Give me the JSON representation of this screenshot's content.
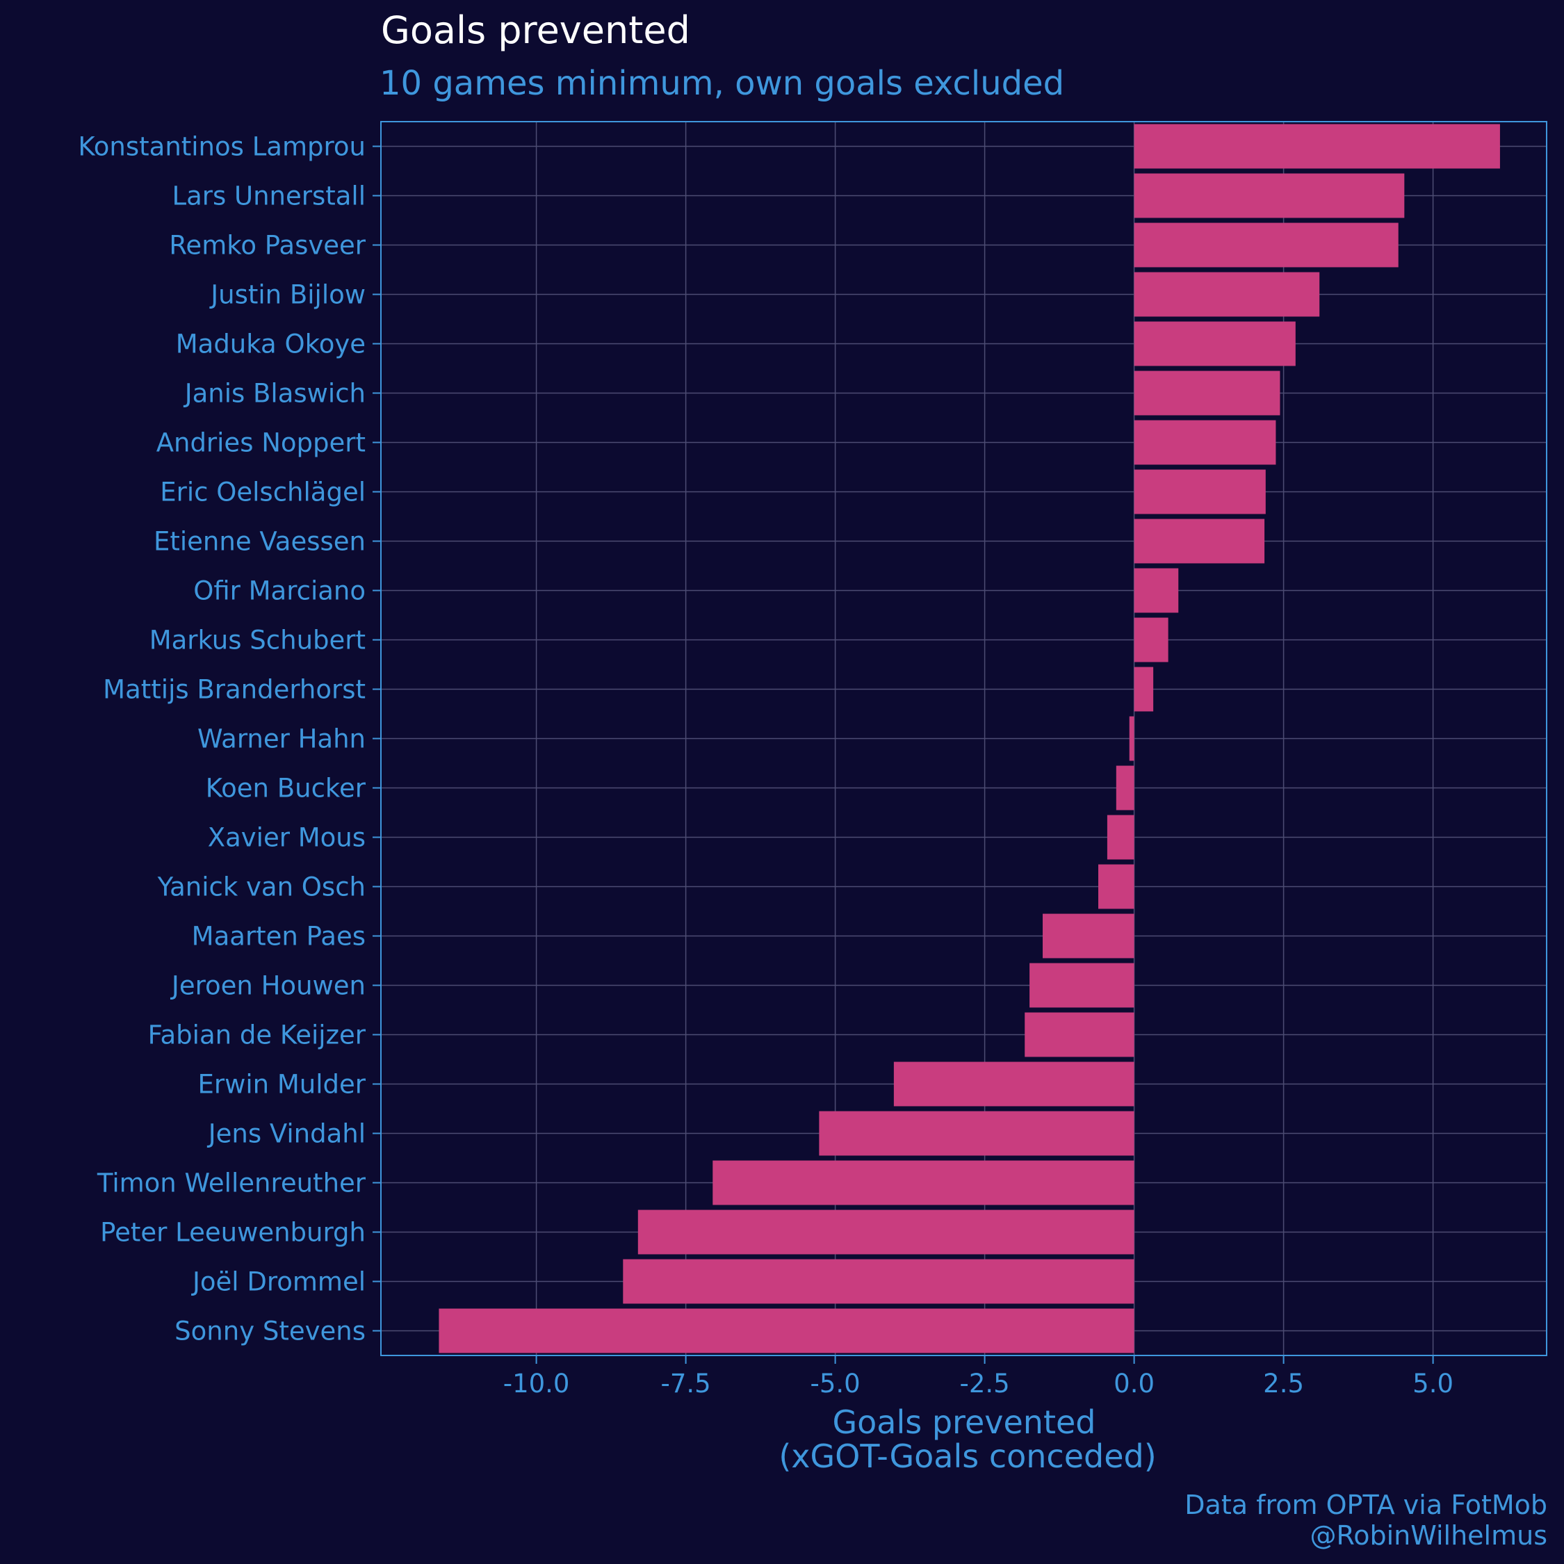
{
  "colors": {
    "background": "#0c0a30",
    "bar": "#c93d7f",
    "text_accent": "#3f97dd",
    "title": "#ffffff",
    "grid": "#4d4c73",
    "panel_border": "#3f97dd"
  },
  "chart_data": {
    "type": "bar",
    "orientation": "horizontal",
    "title": "Goals prevented",
    "subtitle": "10 games minimum, own goals excluded",
    "xlabel": [
      "Goals prevented",
      "(xGOT-Goals conceded)"
    ],
    "ylabel": "",
    "xlim": [
      -12.6,
      6.9
    ],
    "xticks": [
      -10.0,
      -7.5,
      -5.0,
      -2.5,
      0.0,
      2.5,
      5.0
    ],
    "xtick_labels": [
      "-10.0",
      "-7.5",
      "-5.0",
      "-2.5",
      "0.0",
      "2.5",
      "5.0"
    ],
    "grid": true,
    "caption": [
      "Data from OPTA via FotMob",
      "@RobinWilhelmus"
    ],
    "categories": [
      "Konstantinos Lamprou",
      "Lars Unnerstall",
      "Remko Pasveer",
      "Justin Bijlow",
      "Maduka Okoye",
      "Janis Blaswich",
      "Andries Noppert",
      "Eric Oelschlägel",
      "Etienne Vaessen",
      "Ofir Marciano",
      "Markus Schubert",
      "Mattijs Branderhorst",
      "Warner Hahn",
      "Koen Bucker",
      "Xavier Mous",
      "Yanick van Osch",
      "Maarten Paes",
      "Jeroen Houwen",
      "Fabian de Keijzer",
      "Erwin Mulder",
      "Jens Vindahl",
      "Timon Wellenreuther",
      "Peter Leeuwenburgh",
      "Joël Drommel",
      "Sonny Stevens"
    ],
    "values": [
      6.12,
      4.52,
      4.42,
      3.1,
      2.7,
      2.44,
      2.37,
      2.2,
      2.18,
      0.74,
      0.57,
      0.32,
      -0.08,
      -0.3,
      -0.45,
      -0.6,
      -1.53,
      -1.75,
      -1.83,
      -4.02,
      -5.27,
      -7.05,
      -8.3,
      -8.55,
      -11.63
    ]
  }
}
